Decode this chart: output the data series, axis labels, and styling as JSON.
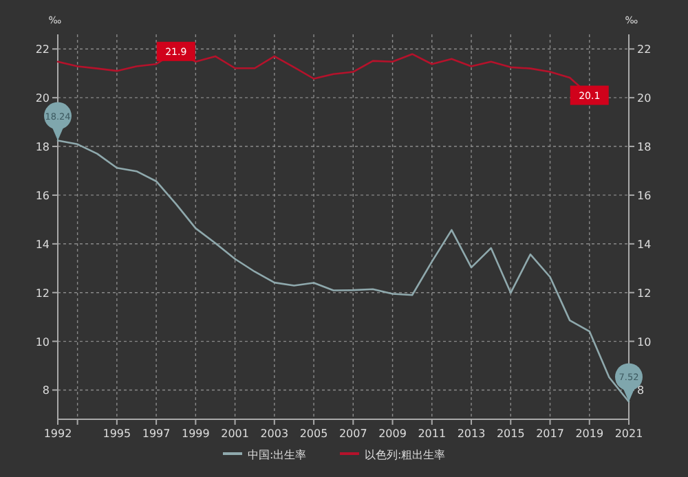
{
  "chart_data": {
    "type": "line",
    "ylabel": "‰",
    "y2label": "‰",
    "x": [
      1992,
      1993,
      1994,
      1995,
      1996,
      1997,
      1998,
      1999,
      2000,
      2001,
      2002,
      2003,
      2004,
      2005,
      2006,
      2007,
      2008,
      2009,
      2010,
      2011,
      2012,
      2013,
      2014,
      2015,
      2016,
      2017,
      2018,
      2019,
      2020,
      2021
    ],
    "series": [
      {
        "name": "中国:出生率",
        "color": "#8fa9ad",
        "values": [
          18.24,
          18.09,
          17.7,
          17.12,
          16.98,
          16.57,
          15.64,
          14.64,
          14.03,
          13.38,
          12.86,
          12.41,
          12.29,
          12.4,
          12.09,
          12.1,
          12.14,
          11.95,
          11.9,
          13.27,
          14.57,
          13.03,
          13.83,
          11.99,
          13.57,
          12.64,
          10.86,
          10.41,
          8.52,
          7.52
        ],
        "value_labels": [
          "18.24",
          null,
          null,
          null,
          null,
          null,
          null,
          null,
          null,
          null,
          null,
          null,
          null,
          null,
          null,
          null,
          null,
          null,
          null,
          null,
          null,
          null,
          null,
          null,
          null,
          null,
          null,
          null,
          null,
          "7.52"
        ]
      },
      {
        "name": "以色列:粗出生率",
        "color": "#b5122b",
        "values": [
          21.48,
          21.29,
          21.2,
          21.1,
          21.29,
          21.38,
          21.9,
          21.48,
          21.7,
          21.21,
          21.21,
          21.7,
          21.25,
          20.78,
          20.97,
          21.06,
          21.51,
          21.48,
          21.79,
          21.38,
          21.59,
          21.29,
          21.48,
          21.25,
          21.2,
          21.06,
          20.82,
          20.1,
          null,
          null
        ],
        "value_labels": [
          null,
          null,
          null,
          null,
          null,
          null,
          "21.9",
          null,
          null,
          null,
          null,
          null,
          null,
          null,
          null,
          null,
          null,
          null,
          null,
          null,
          null,
          null,
          null,
          null,
          null,
          null,
          null,
          "20.1",
          null,
          null
        ]
      }
    ],
    "xlim": [
      1992,
      2021
    ],
    "xticks": [
      1992,
      {
        "value": 1993,
        "label": null
      },
      1995,
      1997,
      1999,
      2001,
      2003,
      2005,
      2007,
      2009,
      2011,
      2013,
      2015,
      2017,
      2019,
      2021
    ],
    "ylim": [
      6.8,
      22.6
    ],
    "yticks": [
      8,
      10,
      12,
      14,
      16,
      18,
      20,
      22
    ],
    "y2lim": [
      6.8,
      22.6
    ],
    "y2ticks": [
      8,
      10,
      12,
      14,
      16,
      18,
      20,
      22
    ],
    "grid": true,
    "legend": "bottom",
    "marker": "none",
    "line_style": "solid"
  }
}
